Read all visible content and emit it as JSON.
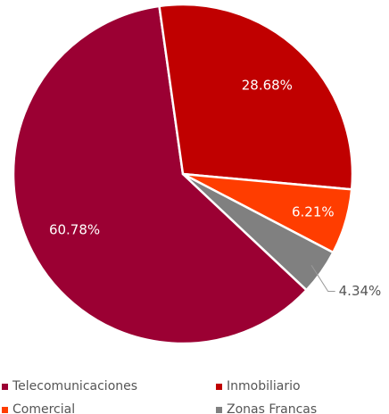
{
  "chart_data": {
    "type": "pie",
    "categories": [
      "Telecomunicaciones",
      "Inmobiliario",
      "Comercial",
      "Zonas Francas"
    ],
    "values": [
      60.78,
      28.68,
      6.21,
      4.34
    ],
    "value_labels": [
      "60.78%",
      "28.68%",
      "6.21%",
      "4.34%"
    ],
    "colors": [
      "#9b0033",
      "#c00000",
      "#ff3d00",
      "#808080"
    ],
    "legend": "bottom"
  }
}
